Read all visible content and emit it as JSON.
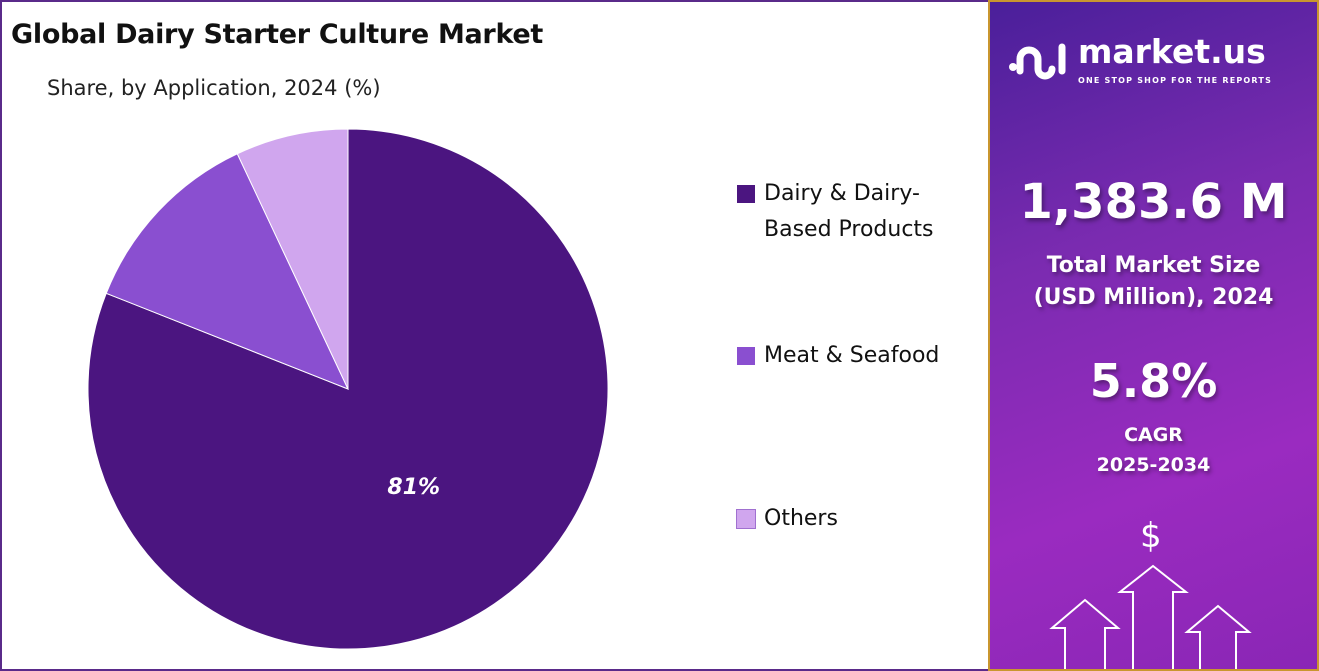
{
  "chart_data": {
    "type": "pie",
    "title": "Global Dairy Starter Culture Market",
    "subtitle": "Share, by Application, 2024 (%)",
    "categories": [
      "Dairy & Dairy-Based Products",
      "Meat & Seafood",
      "Others"
    ],
    "values": [
      81,
      12,
      7
    ],
    "data_labels": [
      "81%",
      "",
      ""
    ],
    "colors": [
      "#4b1580",
      "#8a4fd0",
      "#d0a6ee"
    ],
    "legend_position": "right",
    "legend": [
      {
        "line1": "Dairy & Dairy-",
        "line2": "Based Products"
      },
      {
        "line1": "Meat & Seafood",
        "line2": ""
      },
      {
        "line1": "Others",
        "line2": ""
      }
    ]
  },
  "sidebar": {
    "logo_name": "market.us",
    "logo_tagline": "ONE STOP SHOP FOR THE REPORTS",
    "market_size": "1,383.6 M",
    "market_size_label_1": "Total Market Size",
    "market_size_label_2": "(USD Million), 2024",
    "cagr": "5.8%",
    "cagr_label": "CAGR",
    "cagr_period": "2025-2034",
    "dollar_symbol": "$"
  }
}
